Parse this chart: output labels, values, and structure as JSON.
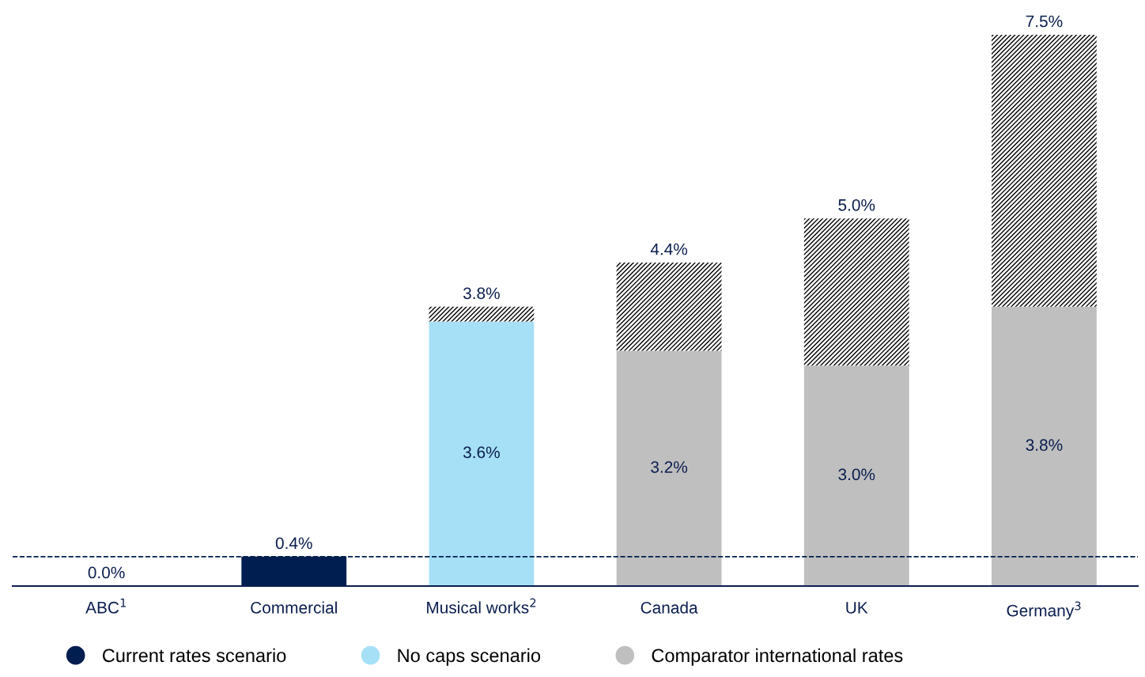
{
  "chart_data": {
    "type": "bar",
    "stacked": true,
    "categories": [
      "ABC$^{1}$",
      "Commercial",
      "Musical works$^{2}$",
      "Canada",
      "UK",
      "Germany$^{3}$"
    ],
    "series": [
      {
        "name": "Current rates scenario",
        "color": "#001e50",
        "values": [
          0.0,
          0.4,
          null,
          null,
          null,
          null
        ],
        "value_labels": [
          null,
          null,
          null,
          null,
          null,
          null
        ]
      },
      {
        "name": "No caps scenario",
        "color": "#a6e0f7",
        "values": [
          null,
          null,
          3.6,
          null,
          null,
          null
        ],
        "value_labels": [
          null,
          null,
          "3.6%",
          null,
          null,
          null
        ]
      },
      {
        "name": "Comparator international rates",
        "color": "#bfbfbf",
        "values": [
          null,
          null,
          null,
          3.2,
          3.0,
          3.8
        ],
        "value_labels": [
          null,
          null,
          null,
          "3.2%",
          "3.0%",
          "3.8%"
        ]
      },
      {
        "color": "#000000",
        "values": [
          null,
          null,
          0.2,
          1.2,
          2.0,
          3.7
        ]
      }
    ],
    "totals": [
      "0.0%",
      "0.4%",
      "3.8%",
      "4.4%",
      "5.0%",
      "7.5%"
    ],
    "tick_labels": "x",
    "ref_lines": [
      {
        "axis": "y",
        "value": 0.4,
        "color": "#001e50",
        "line_style": "dashed"
      }
    ],
    "grid": false,
    "legend": "bottom"
  }
}
